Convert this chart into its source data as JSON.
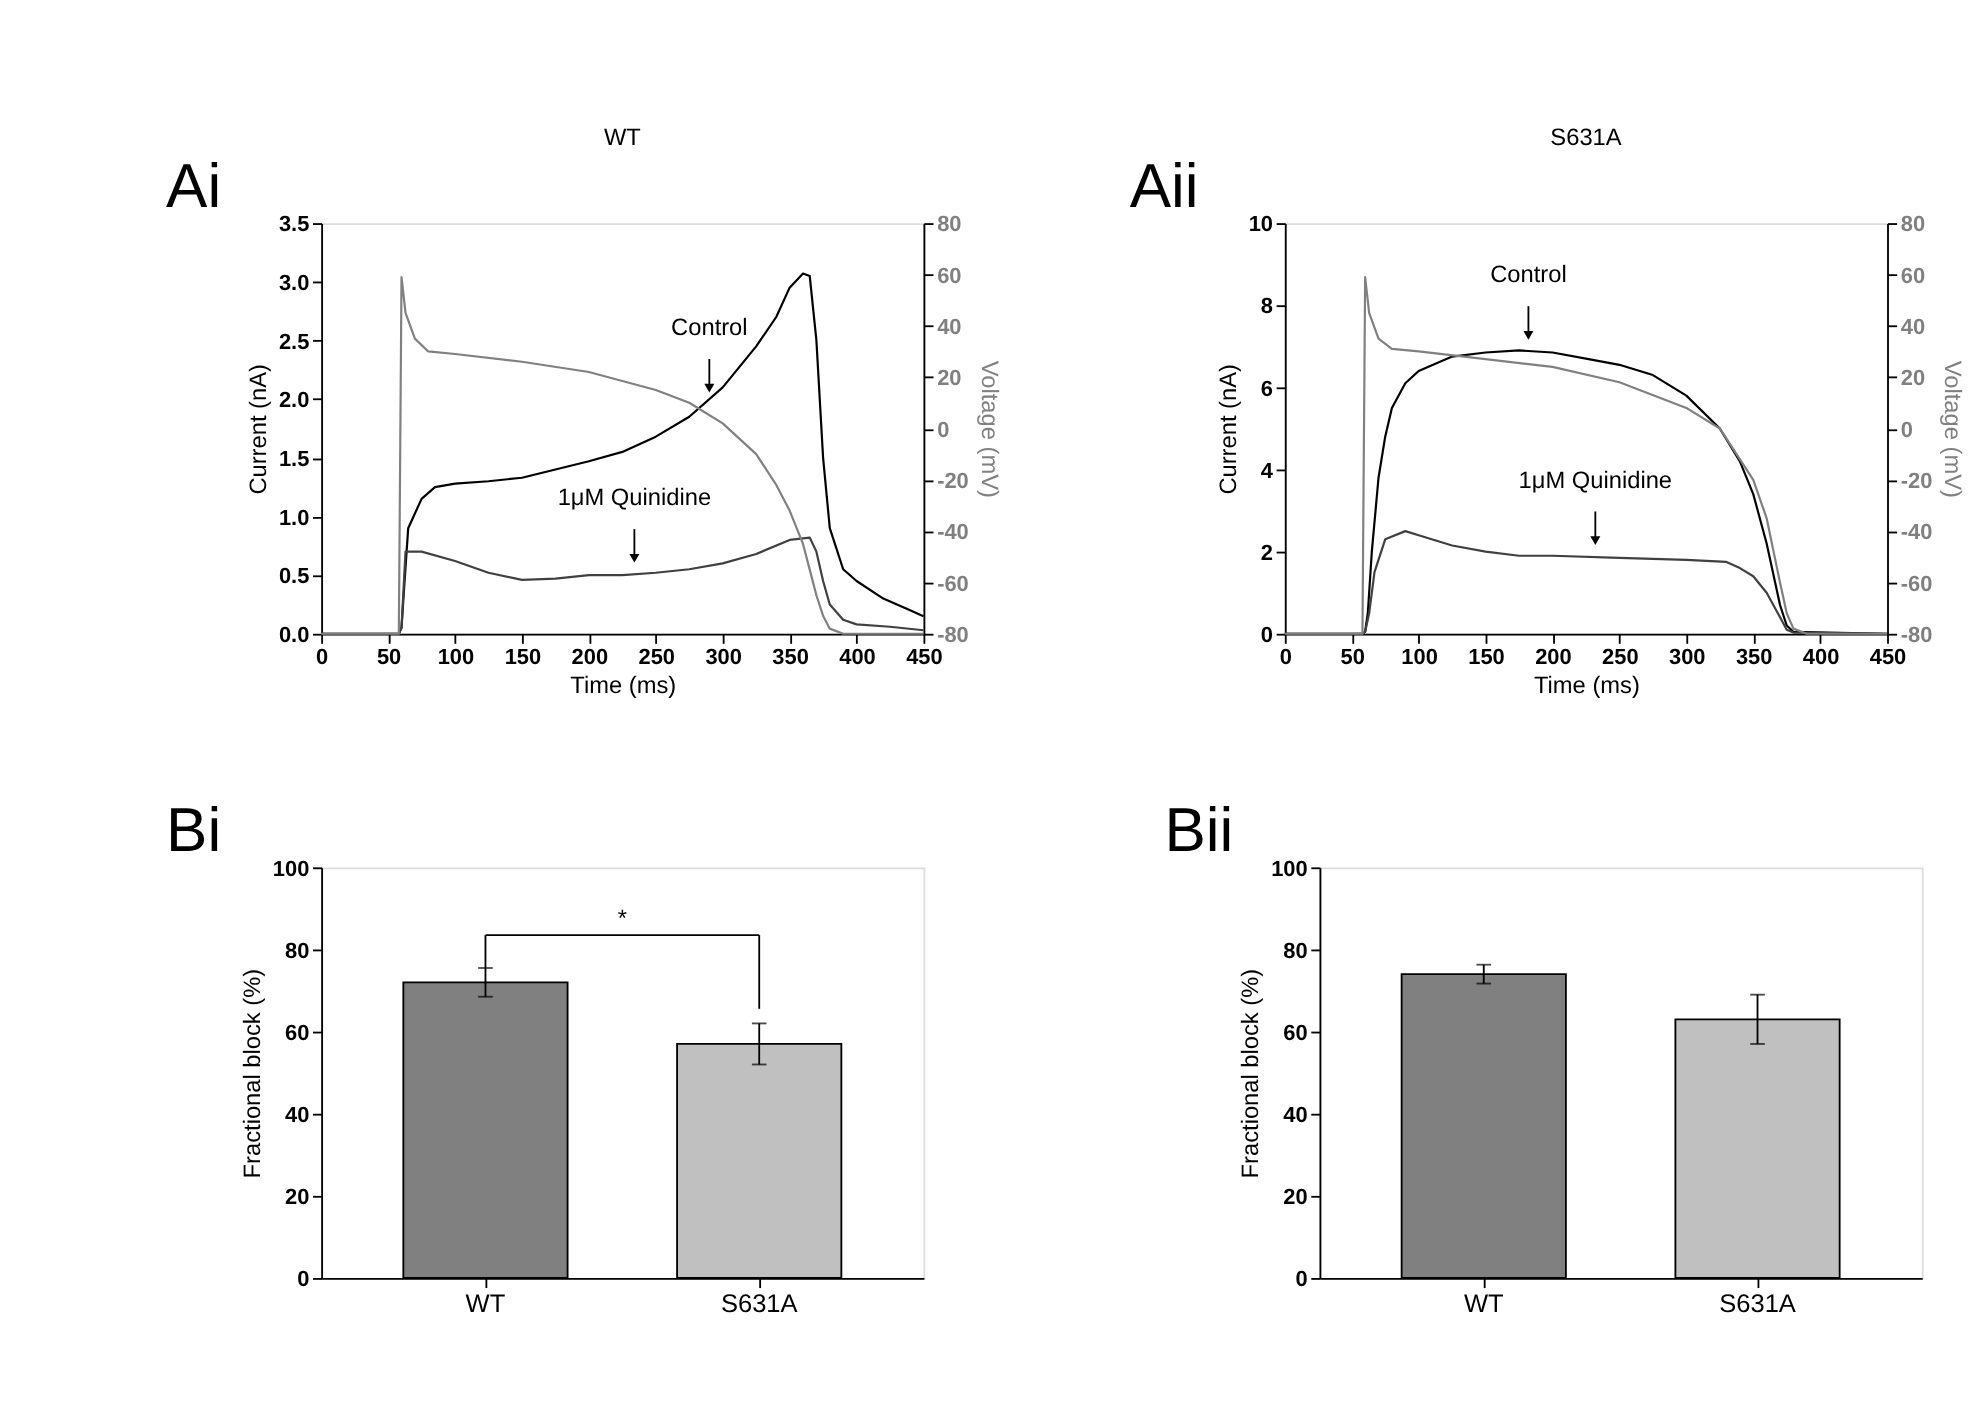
{
  "chart_data": [
    {
      "type": "line",
      "title": "WT",
      "xlabel": "Time (ms)",
      "ylabel": "Current (nA)",
      "y2label": "Voltage (mV)",
      "xlim": [
        0,
        450
      ],
      "xticks": [
        0,
        50,
        100,
        150,
        200,
        250,
        300,
        350,
        400,
        450
      ],
      "ylim": [
        0,
        3.5
      ],
      "yticks": [
        {
          "value": 0,
          "label": "0.0"
        },
        0.5,
        {
          "value": 1,
          "label": "1.0"
        },
        1.5,
        {
          "value": 2,
          "label": "2.0"
        },
        2.5,
        {
          "value": 3,
          "label": "3.0"
        },
        3.5
      ],
      "y2lim": [
        -80,
        80
      ],
      "y2ticks": [
        -80,
        -60,
        -40,
        -20,
        0,
        20,
        40,
        60,
        80
      ],
      "grid": false,
      "line_style": "solid",
      "marker": "none",
      "annotations": [
        "Ai",
        {
          "text": "Control",
          "x": 290,
          "y": 2.0
        },
        {
          "text": "1μM Quinidine",
          "x": 234,
          "y": 0.55
        }
      ],
      "series": [
        {
          "color": "#000000",
          "x": [
            0,
            58,
            60,
            62,
            65,
            75,
            85,
            100,
            125,
            150,
            175,
            200,
            225,
            250,
            275,
            300,
            325,
            340,
            350,
            360,
            365,
            370,
            375,
            380,
            390,
            400,
            420,
            440,
            450
          ],
          "values": [
            0,
            0,
            0.05,
            0.4,
            0.9,
            1.15,
            1.25,
            1.28,
            1.3,
            1.33,
            1.4,
            1.47,
            1.55,
            1.68,
            1.85,
            2.1,
            2.45,
            2.7,
            2.95,
            3.07,
            3.05,
            2.5,
            1.5,
            0.9,
            0.55,
            0.45,
            0.3,
            0.2,
            0.15
          ]
        },
        {
          "color": "#404040",
          "x": [
            0,
            58,
            60,
            63,
            75,
            100,
            125,
            150,
            175,
            200,
            225,
            250,
            275,
            300,
            325,
            350,
            365,
            370,
            375,
            380,
            390,
            400,
            425,
            450
          ],
          "values": [
            0,
            0,
            0.05,
            0.7,
            0.7,
            0.62,
            0.52,
            0.46,
            0.47,
            0.5,
            0.5,
            0.52,
            0.55,
            0.6,
            0.68,
            0.8,
            0.82,
            0.7,
            0.45,
            0.25,
            0.12,
            0.08,
            0.06,
            0.03
          ]
        },
        {
          "color": "#808080",
          "axis": "y2",
          "x": [
            0,
            58,
            60,
            63,
            70,
            80,
            100,
            150,
            200,
            250,
            275,
            300,
            325,
            340,
            350,
            360,
            365,
            370,
            375,
            380,
            390,
            450
          ],
          "values": [
            -80,
            -80,
            59,
            45,
            35,
            30,
            29,
            26,
            22,
            15,
            10,
            2,
            -10,
            -22,
            -32,
            -45,
            -55,
            -65,
            -73,
            -78,
            -80,
            -80
          ]
        }
      ]
    },
    {
      "type": "line",
      "title": "S631A",
      "xlabel": "Time (ms)",
      "ylabel": "Current (nA)",
      "y2label": "Voltage (mV)",
      "xlim": [
        0,
        450
      ],
      "xticks": [
        0,
        50,
        100,
        150,
        200,
        250,
        300,
        350,
        400,
        450
      ],
      "ylim": [
        0,
        10
      ],
      "yticks": [
        0,
        2,
        4,
        6,
        8,
        10
      ],
      "y2lim": [
        -80,
        80
      ],
      "y2ticks": [
        -80,
        -60,
        -40,
        -20,
        0,
        20,
        40,
        60,
        80
      ],
      "grid": false,
      "line_style": "solid",
      "marker": "none",
      "annotations": [
        "Aii",
        {
          "text": "Control",
          "x": 182,
          "y": 7.0
        },
        {
          "text": "1μM Quinidine",
          "x": 232,
          "y": 2.0
        }
      ],
      "series": [
        {
          "color": "#000000",
          "x": [
            0,
            58,
            60,
            62,
            65,
            70,
            75,
            80,
            90,
            100,
            125,
            150,
            175,
            200,
            225,
            250,
            275,
            300,
            325,
            340,
            350,
            360,
            370,
            375,
            380,
            450
          ],
          "values": [
            0,
            0,
            0.05,
            0.5,
            2,
            3.8,
            4.8,
            5.5,
            6.1,
            6.4,
            6.75,
            6.85,
            6.9,
            6.85,
            6.7,
            6.55,
            6.3,
            5.8,
            5.0,
            4.2,
            3.4,
            2.2,
            0.7,
            0.2,
            0.05,
            0
          ]
        },
        {
          "color": "#404040",
          "x": [
            0,
            58,
            60,
            63,
            67,
            75,
            90,
            100,
            125,
            150,
            175,
            200,
            250,
            300,
            330,
            340,
            350,
            360,
            370,
            375,
            380,
            450
          ],
          "values": [
            0,
            0,
            0.05,
            0.5,
            1.5,
            2.3,
            2.5,
            2.4,
            2.15,
            2.0,
            1.9,
            1.9,
            1.85,
            1.8,
            1.75,
            1.6,
            1.4,
            1.0,
            0.4,
            0.1,
            0.03,
            0
          ]
        },
        {
          "color": "#808080",
          "axis": "y2",
          "x": [
            0,
            58,
            60,
            63,
            70,
            80,
            100,
            150,
            200,
            250,
            300,
            325,
            350,
            360,
            370,
            375,
            380,
            390,
            450
          ],
          "values": [
            -80,
            -80,
            59,
            45,
            35,
            31,
            30,
            27,
            24,
            18,
            8,
            0,
            -20,
            -35,
            -60,
            -72,
            -78,
            -80,
            -80
          ]
        }
      ]
    },
    {
      "type": "bar",
      "ylabel": "Fractional block (%)",
      "categories": [
        "WT",
        "S631A"
      ],
      "values": [
        72,
        57
      ],
      "errors": [
        3.5,
        5
      ],
      "colors": [
        "#808080",
        "#c0c0c0"
      ],
      "ylim": [
        0,
        100
      ],
      "yticks": [
        0,
        20,
        40,
        60,
        80,
        100
      ],
      "grid": false,
      "annotations": [
        "Bi",
        "*"
      ]
    },
    {
      "type": "bar",
      "ylabel": "Fractional block (%)",
      "categories": [
        "WT",
        "S631A"
      ],
      "values": [
        74,
        63
      ],
      "errors": [
        2.3,
        6
      ],
      "colors": [
        "#808080",
        "#c0c0c0"
      ],
      "ylim": [
        0,
        100
      ],
      "yticks": [
        0,
        20,
        40,
        60,
        80,
        100
      ],
      "grid": false,
      "annotations": [
        "Bii"
      ]
    }
  ]
}
